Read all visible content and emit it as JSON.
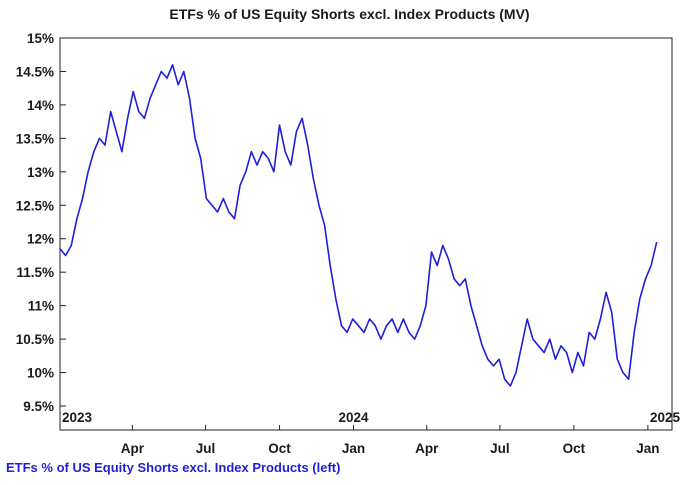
{
  "chart_data": {
    "type": "line",
    "title": "ETFs % of US Equity Shorts excl. Index Products (MV)",
    "legend": {
      "position": "bottom-left",
      "entries": [
        "ETFs % of US Equity Shorts excl. Index Products (left)"
      ]
    },
    "grid": false,
    "ylim": [
      9.5,
      15
    ],
    "xlim": [
      "2023-01-01",
      "2025-01-31"
    ],
    "y_tick_labels": [
      "15%",
      "14.5%",
      "14%",
      "13.5%",
      "13%",
      "12.5%",
      "12%",
      "11.5%",
      "11%",
      "10.5%",
      "10%",
      "9.5%"
    ],
    "y_ticks": [
      15,
      14.5,
      14,
      13.5,
      13,
      12.5,
      12,
      11.5,
      11,
      10.5,
      10,
      9.5
    ],
    "x_month_ticks": [
      {
        "date": "2023-04-01",
        "label": "Apr"
      },
      {
        "date": "2023-07-01",
        "label": "Jul"
      },
      {
        "date": "2023-10-01",
        "label": "Oct"
      },
      {
        "date": "2024-01-01",
        "label": "Jan"
      },
      {
        "date": "2024-04-01",
        "label": "Apr"
      },
      {
        "date": "2024-07-01",
        "label": "Jul"
      },
      {
        "date": "2024-10-01",
        "label": "Oct"
      },
      {
        "date": "2025-01-01",
        "label": "Jan"
      }
    ],
    "x_year_labels": [
      {
        "date": "2023-01-01",
        "label": "2023"
      },
      {
        "date": "2024-01-01",
        "label": "2024"
      },
      {
        "date": "2025-01-01",
        "label": "2025"
      }
    ],
    "series": [
      {
        "name": "ETFs % of US Equity Shorts excl. Index Products (left)",
        "color": "#1f1fd8",
        "points": [
          [
            "2023-01-01",
            11.85
          ],
          [
            "2023-01-08",
            11.75
          ],
          [
            "2023-01-15",
            11.9
          ],
          [
            "2023-01-22",
            12.3
          ],
          [
            "2023-01-29",
            12.6
          ],
          [
            "2023-02-05",
            13.0
          ],
          [
            "2023-02-12",
            13.3
          ],
          [
            "2023-02-19",
            13.5
          ],
          [
            "2023-02-26",
            13.4
          ],
          [
            "2023-03-05",
            13.9
          ],
          [
            "2023-03-12",
            13.6
          ],
          [
            "2023-03-19",
            13.3
          ],
          [
            "2023-03-26",
            13.8
          ],
          [
            "2023-04-02",
            14.2
          ],
          [
            "2023-04-09",
            13.9
          ],
          [
            "2023-04-16",
            13.8
          ],
          [
            "2023-04-23",
            14.1
          ],
          [
            "2023-04-30",
            14.3
          ],
          [
            "2023-05-07",
            14.5
          ],
          [
            "2023-05-14",
            14.4
          ],
          [
            "2023-05-21",
            14.6
          ],
          [
            "2023-05-28",
            14.3
          ],
          [
            "2023-06-04",
            14.5
          ],
          [
            "2023-06-11",
            14.1
          ],
          [
            "2023-06-18",
            13.5
          ],
          [
            "2023-06-25",
            13.2
          ],
          [
            "2023-07-02",
            12.6
          ],
          [
            "2023-07-09",
            12.5
          ],
          [
            "2023-07-16",
            12.4
          ],
          [
            "2023-07-23",
            12.6
          ],
          [
            "2023-07-30",
            12.4
          ],
          [
            "2023-08-06",
            12.3
          ],
          [
            "2023-08-13",
            12.8
          ],
          [
            "2023-08-20",
            13.0
          ],
          [
            "2023-08-27",
            13.3
          ],
          [
            "2023-09-03",
            13.1
          ],
          [
            "2023-09-10",
            13.3
          ],
          [
            "2023-09-17",
            13.2
          ],
          [
            "2023-09-24",
            13.0
          ],
          [
            "2023-10-01",
            13.7
          ],
          [
            "2023-10-08",
            13.3
          ],
          [
            "2023-10-15",
            13.1
          ],
          [
            "2023-10-22",
            13.6
          ],
          [
            "2023-10-29",
            13.8
          ],
          [
            "2023-11-05",
            13.4
          ],
          [
            "2023-11-12",
            12.9
          ],
          [
            "2023-11-19",
            12.5
          ],
          [
            "2023-11-26",
            12.2
          ],
          [
            "2023-12-03",
            11.6
          ],
          [
            "2023-12-10",
            11.1
          ],
          [
            "2023-12-17",
            10.7
          ],
          [
            "2023-12-24",
            10.6
          ],
          [
            "2023-12-31",
            10.8
          ],
          [
            "2024-01-07",
            10.7
          ],
          [
            "2024-01-14",
            10.6
          ],
          [
            "2024-01-21",
            10.8
          ],
          [
            "2024-01-28",
            10.7
          ],
          [
            "2024-02-04",
            10.5
          ],
          [
            "2024-02-11",
            10.7
          ],
          [
            "2024-02-18",
            10.8
          ],
          [
            "2024-02-25",
            10.6
          ],
          [
            "2024-03-03",
            10.8
          ],
          [
            "2024-03-10",
            10.6
          ],
          [
            "2024-03-17",
            10.5
          ],
          [
            "2024-03-24",
            10.7
          ],
          [
            "2024-03-31",
            11.0
          ],
          [
            "2024-04-07",
            11.8
          ],
          [
            "2024-04-14",
            11.6
          ],
          [
            "2024-04-21",
            11.9
          ],
          [
            "2024-04-28",
            11.7
          ],
          [
            "2024-05-05",
            11.4
          ],
          [
            "2024-05-12",
            11.3
          ],
          [
            "2024-05-19",
            11.4
          ],
          [
            "2024-05-26",
            11.0
          ],
          [
            "2024-06-02",
            10.7
          ],
          [
            "2024-06-09",
            10.4
          ],
          [
            "2024-06-16",
            10.2
          ],
          [
            "2024-06-23",
            10.1
          ],
          [
            "2024-06-30",
            10.2
          ],
          [
            "2024-07-07",
            9.9
          ],
          [
            "2024-07-14",
            9.8
          ],
          [
            "2024-07-21",
            10.0
          ],
          [
            "2024-07-28",
            10.4
          ],
          [
            "2024-08-04",
            10.8
          ],
          [
            "2024-08-11",
            10.5
          ],
          [
            "2024-08-18",
            10.4
          ],
          [
            "2024-08-25",
            10.3
          ],
          [
            "2024-09-01",
            10.5
          ],
          [
            "2024-09-08",
            10.2
          ],
          [
            "2024-09-15",
            10.4
          ],
          [
            "2024-09-22",
            10.3
          ],
          [
            "2024-09-29",
            10.0
          ],
          [
            "2024-10-06",
            10.3
          ],
          [
            "2024-10-13",
            10.1
          ],
          [
            "2024-10-20",
            10.6
          ],
          [
            "2024-10-27",
            10.5
          ],
          [
            "2024-11-03",
            10.8
          ],
          [
            "2024-11-10",
            11.2
          ],
          [
            "2024-11-17",
            10.9
          ],
          [
            "2024-11-24",
            10.2
          ],
          [
            "2024-12-01",
            10.0
          ],
          [
            "2024-12-08",
            9.9
          ],
          [
            "2024-12-15",
            10.6
          ],
          [
            "2024-12-22",
            11.1
          ],
          [
            "2024-12-29",
            11.4
          ],
          [
            "2025-01-05",
            11.6
          ],
          [
            "2025-01-12",
            11.95
          ]
        ]
      }
    ]
  }
}
